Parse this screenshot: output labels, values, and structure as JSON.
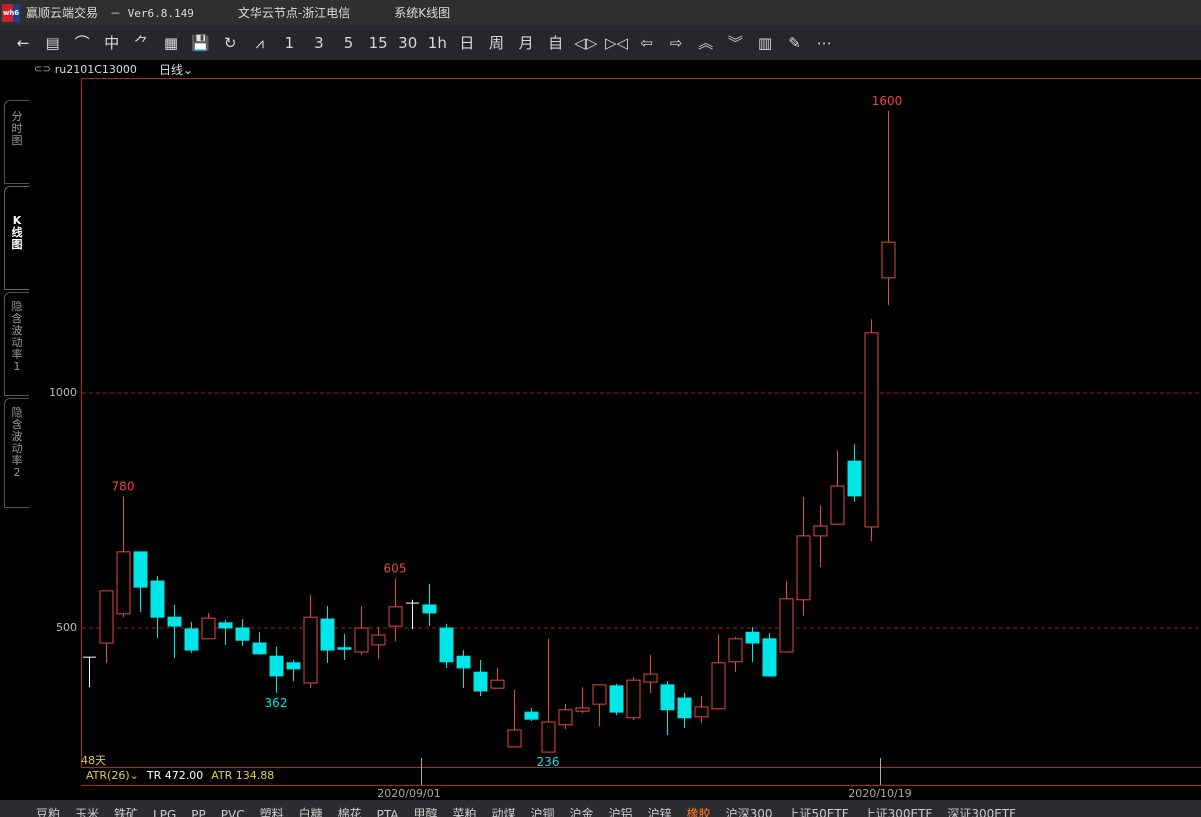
{
  "titlebar": {
    "app": "赢顺云端交易",
    "version": "－ Ver6.8.149",
    "node": "文华云节点-浙江电信",
    "view": "系统K线图",
    "logo_text": "wh6"
  },
  "toolbar": [
    {
      "icon": "back-arrow-icon",
      "label": "←"
    },
    {
      "icon": "list-icon",
      "label": "▤"
    },
    {
      "icon": "line-chart-icon",
      "label": "⌒"
    },
    {
      "icon": "candlestick-icon",
      "label": "中"
    },
    {
      "icon": "draw-tool-icon",
      "label": "⺈"
    },
    {
      "icon": "grid-icon",
      "label": "▦"
    },
    {
      "icon": "save-icon",
      "label": "💾"
    },
    {
      "icon": "refresh-icon",
      "label": "↻"
    },
    {
      "icon": "indicator-icon",
      "label": "⩘"
    },
    {
      "icon": "period-1",
      "label": "1"
    },
    {
      "icon": "period-3",
      "label": "3"
    },
    {
      "icon": "period-5",
      "label": "5"
    },
    {
      "icon": "period-15",
      "label": "15"
    },
    {
      "icon": "period-30",
      "label": "30"
    },
    {
      "icon": "period-1h",
      "label": "1h"
    },
    {
      "icon": "period-day",
      "label": "日"
    },
    {
      "icon": "period-week",
      "label": "周"
    },
    {
      "icon": "period-month",
      "label": "月"
    },
    {
      "icon": "period-custom",
      "label": "自"
    },
    {
      "icon": "expand-icon",
      "label": "◁▷"
    },
    {
      "icon": "shrink-icon",
      "label": "▷◁"
    },
    {
      "icon": "left-icon",
      "label": "⇦"
    },
    {
      "icon": "right-icon",
      "label": "⇨"
    },
    {
      "icon": "up-icon",
      "label": "︽"
    },
    {
      "icon": "down-icon",
      "label": "︾"
    },
    {
      "icon": "layout-icon",
      "label": "▥"
    },
    {
      "icon": "pen-icon",
      "label": "✎"
    },
    {
      "icon": "more-icon",
      "label": "⋯"
    }
  ],
  "symbol": {
    "code": "ru2101C13000",
    "period": "日线",
    "period_arrow": "⌄"
  },
  "left_tabs": [
    {
      "chars": [
        "分",
        "时",
        "图"
      ],
      "active": false
    },
    {
      "chars": [
        "K",
        "线",
        "图"
      ],
      "active": true
    },
    {
      "chars": [
        "隐",
        "含",
        "波",
        "动",
        "率",
        "1"
      ],
      "active": false
    },
    {
      "chars": [
        "隐",
        "含",
        "波",
        "动",
        "率",
        "2"
      ],
      "active": false
    }
  ],
  "indicator": {
    "name": "ATR(26)",
    "arrow": "⌄",
    "tr": "TR 472.00",
    "atr": "ATR 134.88",
    "days": "48天"
  },
  "colors": {
    "up": "#e8483f",
    "down": "#00e6e6",
    "flat": "#ffffff",
    "frame": "#b3211e",
    "grid": "#9a1c1c"
  },
  "chart_data": {
    "type": "candlestick",
    "ylim": [
      204,
      1670
    ],
    "yticks": [
      500,
      1000
    ],
    "grid_lines": [
      500,
      1000
    ],
    "x_ticks": [
      {
        "index": 19,
        "label": "2020/09/01"
      },
      {
        "index": 46,
        "label": "2020/10/19"
      }
    ],
    "annotations": [
      {
        "index": 2,
        "value": 780,
        "text": "780",
        "color": "up"
      },
      {
        "index": 11,
        "value": 362,
        "text": "362",
        "color": "down"
      },
      {
        "index": 18,
        "value": 605,
        "text": "605",
        "color": "up"
      },
      {
        "index": 27,
        "value": 236,
        "text": "236",
        "color": "down"
      },
      {
        "index": 47,
        "value": 1600,
        "text": "1600",
        "color": "up"
      }
    ],
    "ohlc": [
      [
        438,
        438,
        374,
        438
      ],
      [
        468,
        579,
        425,
        579
      ],
      [
        530,
        780,
        523,
        662
      ],
      [
        662,
        662,
        534,
        587
      ],
      [
        600,
        611,
        479,
        523
      ],
      [
        523,
        549,
        436,
        504
      ],
      [
        498,
        513,
        447,
        453
      ],
      [
        477,
        532,
        477,
        521
      ],
      [
        511,
        517,
        464,
        500
      ],
      [
        500,
        519,
        462,
        474
      ],
      [
        468,
        491,
        443,
        445
      ],
      [
        440,
        460,
        362,
        398
      ],
      [
        426,
        432,
        387,
        413
      ],
      [
        383,
        570,
        372,
        523
      ],
      [
        519,
        547,
        426,
        453
      ],
      [
        458,
        487,
        432,
        455
      ],
      [
        449,
        547,
        443,
        500
      ],
      [
        464,
        502,
        434,
        485
      ],
      [
        504,
        605,
        472,
        545
      ],
      [
        553,
        560,
        498,
        553
      ],
      [
        549,
        594,
        504,
        532
      ],
      [
        500,
        509,
        415,
        428
      ],
      [
        440,
        453,
        372,
        415
      ],
      [
        406,
        432,
        355,
        366
      ],
      [
        372,
        415,
        372,
        389
      ],
      [
        247,
        368,
        247,
        283
      ],
      [
        321,
        330,
        302,
        306
      ],
      [
        236,
        477,
        236,
        300
      ],
      [
        294,
        338,
        285,
        326
      ],
      [
        323,
        374,
        319,
        330
      ],
      [
        338,
        379,
        291,
        379
      ],
      [
        377,
        381,
        315,
        321
      ],
      [
        309,
        396,
        304,
        389
      ],
      [
        385,
        443,
        362,
        402
      ],
      [
        379,
        387,
        272,
        326
      ],
      [
        351,
        362,
        287,
        309
      ],
      [
        311,
        355,
        298,
        332
      ],
      [
        328,
        487,
        326,
        426
      ],
      [
        428,
        481,
        406,
        477
      ],
      [
        491,
        502,
        428,
        468
      ],
      [
        477,
        489,
        396,
        398
      ],
      [
        449,
        600,
        449,
        562
      ],
      [
        560,
        779,
        526,
        696
      ],
      [
        696,
        760,
        630,
        717
      ],
      [
        721,
        877,
        721,
        802
      ],
      [
        855,
        891,
        768,
        781
      ],
      [
        715,
        1157,
        685,
        1128
      ],
      [
        1245,
        1600,
        1187,
        1321
      ]
    ]
  },
  "bottom_tabs": [
    {
      "label": "豆粕"
    },
    {
      "label": "玉米"
    },
    {
      "label": "铁矿"
    },
    {
      "label": "LPG"
    },
    {
      "label": "PP"
    },
    {
      "label": "PVC"
    },
    {
      "label": "塑料"
    },
    {
      "label": "白糖"
    },
    {
      "label": "棉花"
    },
    {
      "label": "PTA"
    },
    {
      "label": "甲醇"
    },
    {
      "label": "菜粕"
    },
    {
      "label": "动煤"
    },
    {
      "label": "沪铜"
    },
    {
      "label": "沪金"
    },
    {
      "label": "沪铝"
    },
    {
      "label": "沪锌"
    },
    {
      "label": "橡胶",
      "active": true
    },
    {
      "label": "沪深300"
    },
    {
      "label": "上证50ETF"
    },
    {
      "label": "上证300ETF"
    },
    {
      "label": "深证300ETF"
    }
  ]
}
